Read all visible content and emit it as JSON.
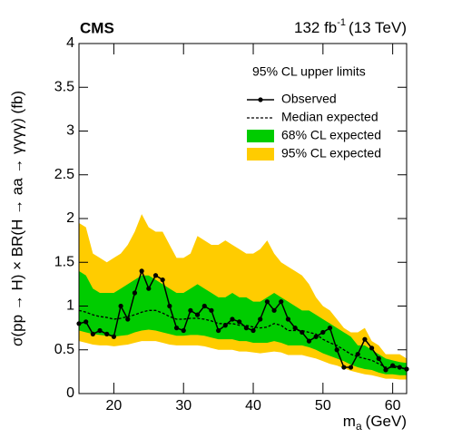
{
  "chart_data": {
    "type": "limit",
    "experiment": "CMS",
    "lumi": "132 fb",
    "lumi_exponent": "-1",
    "energy": "(13 TeV)",
    "legend_title": "95% CL upper limits",
    "ylabel": "σ(pp → H) × BR(H → aa → γγγγ) (fb)",
    "xlabel_symbol": "m",
    "xlabel_subscript": "a",
    "xlabel_unit": "(GeV)",
    "xlim": [
      15,
      62
    ],
    "xticks": [
      20,
      30,
      40,
      50,
      60
    ],
    "ylim": [
      0,
      4
    ],
    "yticks": [
      0,
      0.5,
      1,
      1.5,
      2,
      2.5,
      3,
      3.5,
      4
    ],
    "x": [
      15,
      16,
      17,
      18,
      19,
      20,
      21,
      22,
      23,
      24,
      25,
      26,
      27,
      28,
      29,
      30,
      31,
      32,
      33,
      34,
      35,
      36,
      37,
      38,
      39,
      40,
      41,
      42,
      43,
      44,
      45,
      46,
      47,
      48,
      49,
      50,
      51,
      52,
      53,
      54,
      55,
      56,
      57,
      58,
      59,
      60,
      61,
      62
    ],
    "bands": [
      {
        "name": "95% CL expected",
        "color": "#ffcc00",
        "upper": [
          1.95,
          1.9,
          1.6,
          1.55,
          1.5,
          1.55,
          1.6,
          1.7,
          1.85,
          2.05,
          1.9,
          1.85,
          1.85,
          1.7,
          1.55,
          1.55,
          1.6,
          1.8,
          1.75,
          1.7,
          1.7,
          1.75,
          1.7,
          1.65,
          1.6,
          1.6,
          1.65,
          1.75,
          1.6,
          1.5,
          1.45,
          1.4,
          1.35,
          1.25,
          1.1,
          1.0,
          0.95,
          0.85,
          0.75,
          0.7,
          0.7,
          0.75,
          0.6,
          0.55,
          0.45,
          0.45,
          0.45,
          0.4
        ],
        "lower": [
          0.6,
          0.58,
          0.56,
          0.55,
          0.55,
          0.54,
          0.55,
          0.56,
          0.58,
          0.6,
          0.6,
          0.6,
          0.58,
          0.56,
          0.55,
          0.55,
          0.55,
          0.55,
          0.54,
          0.52,
          0.5,
          0.5,
          0.5,
          0.48,
          0.48,
          0.47,
          0.46,
          0.47,
          0.48,
          0.47,
          0.44,
          0.44,
          0.44,
          0.42,
          0.4,
          0.37,
          0.34,
          0.32,
          0.29,
          0.26,
          0.24,
          0.22,
          0.21,
          0.19,
          0.17,
          0.17,
          0.16,
          0.16
        ]
      },
      {
        "name": "68% CL expected",
        "color": "#00cc00",
        "upper": [
          1.4,
          1.35,
          1.2,
          1.15,
          1.15,
          1.15,
          1.2,
          1.25,
          1.3,
          1.35,
          1.35,
          1.3,
          1.25,
          1.2,
          1.15,
          1.15,
          1.2,
          1.25,
          1.2,
          1.15,
          1.1,
          1.1,
          1.15,
          1.1,
          1.1,
          1.05,
          1.05,
          1.1,
          1.15,
          1.1,
          1.05,
          1.0,
          0.95,
          0.95,
          0.9,
          0.85,
          0.8,
          0.75,
          0.7,
          0.65,
          0.55,
          0.55,
          0.5,
          0.45,
          0.4,
          0.38,
          0.36,
          0.35
        ],
        "lower": [
          0.72,
          0.7,
          0.68,
          0.67,
          0.66,
          0.65,
          0.66,
          0.67,
          0.7,
          0.72,
          0.73,
          0.72,
          0.7,
          0.68,
          0.66,
          0.66,
          0.67,
          0.67,
          0.66,
          0.64,
          0.62,
          0.62,
          0.62,
          0.6,
          0.6,
          0.58,
          0.58,
          0.58,
          0.6,
          0.58,
          0.55,
          0.55,
          0.55,
          0.53,
          0.5,
          0.46,
          0.43,
          0.4,
          0.37,
          0.33,
          0.3,
          0.28,
          0.27,
          0.24,
          0.22,
          0.22,
          0.21,
          0.21
        ]
      }
    ],
    "series": [
      {
        "name": "Observed",
        "color": "#000000",
        "values": [
          0.8,
          0.82,
          0.68,
          0.72,
          0.68,
          0.65,
          1.0,
          0.85,
          1.15,
          1.4,
          1.2,
          1.35,
          1.3,
          1.0,
          0.75,
          0.72,
          0.95,
          0.9,
          1.0,
          0.95,
          0.72,
          0.78,
          0.85,
          0.82,
          0.75,
          0.72,
          0.85,
          1.05,
          0.95,
          1.05,
          0.85,
          0.75,
          0.7,
          0.6,
          0.65,
          0.7,
          0.75,
          0.5,
          0.3,
          0.3,
          0.45,
          0.62,
          0.52,
          0.4,
          0.27,
          0.32,
          0.3,
          0.28
        ]
      },
      {
        "name": "Median expected",
        "color": "#000000",
        "values": [
          0.95,
          0.93,
          0.9,
          0.88,
          0.87,
          0.85,
          0.86,
          0.88,
          0.9,
          0.93,
          0.95,
          0.95,
          0.92,
          0.88,
          0.85,
          0.85,
          0.86,
          0.86,
          0.85,
          0.83,
          0.8,
          0.8,
          0.8,
          0.78,
          0.78,
          0.76,
          0.75,
          0.76,
          0.8,
          0.78,
          0.72,
          0.72,
          0.72,
          0.7,
          0.68,
          0.62,
          0.58,
          0.55,
          0.5,
          0.45,
          0.42,
          0.4,
          0.38,
          0.34,
          0.3,
          0.3,
          0.29,
          0.28
        ]
      }
    ]
  }
}
